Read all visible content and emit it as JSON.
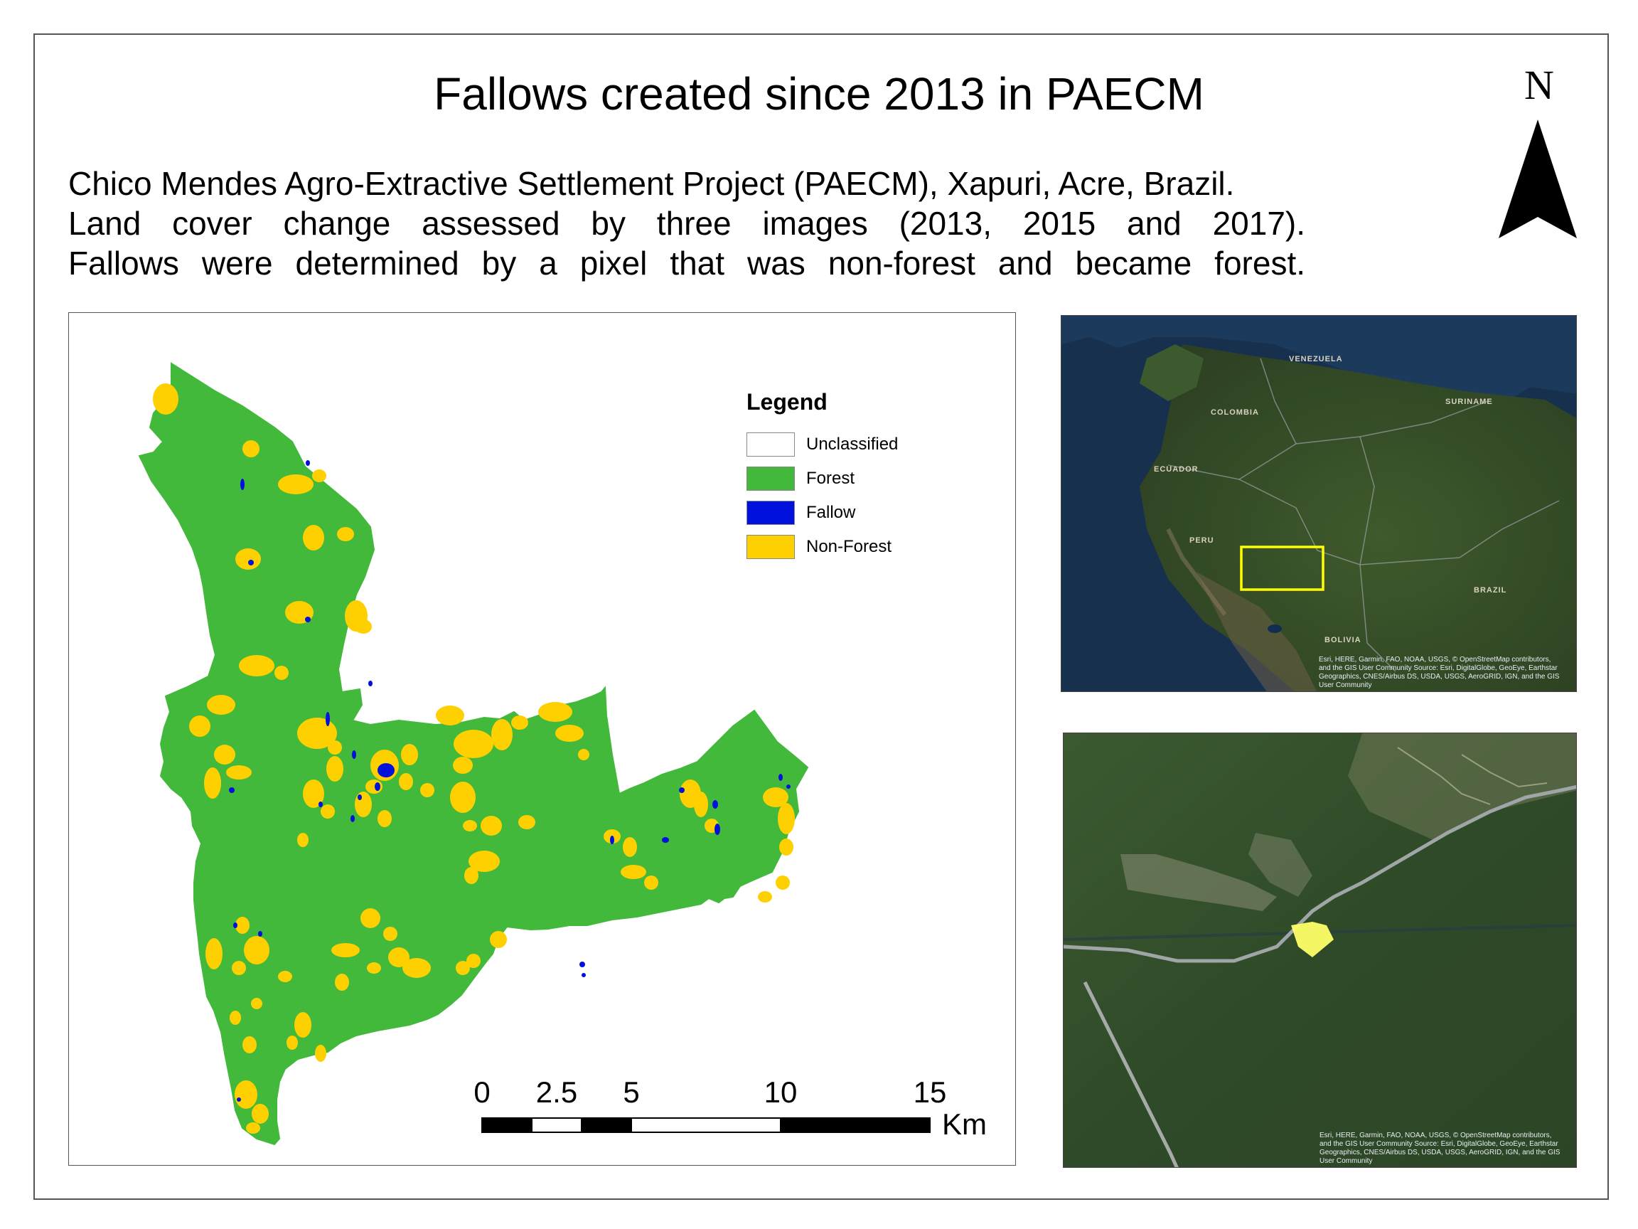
{
  "title": "Fallows created since 2013 in PAECM",
  "description": [
    "Chico Mendes Agro-Extractive Settlement Project (PAECM), Xapuri, Acre, Brazil.",
    "Land cover change assessed by three images (2013,  2015 and 2017).",
    "Fallows were determined by a pixel that was non-forest and became forest."
  ],
  "north_arrow": {
    "letter": "N"
  },
  "legend": {
    "title": "Legend",
    "items": [
      {
        "label": "Unclassified",
        "color": "#ffffff"
      },
      {
        "label": "Forest",
        "color": "#43b93c"
      },
      {
        "label": "Fallow",
        "color": "#0011dd"
      },
      {
        "label": "Non-Forest",
        "color": "#ffd000"
      }
    ]
  },
  "scale_bar": {
    "labels": [
      "0",
      "2.5",
      "5",
      "10",
      "15"
    ],
    "unit": "Km"
  },
  "inset_overview": {
    "countries": [
      "COLOMBIA",
      "ECUADOR",
      "PERU",
      "BRAZIL",
      "BOLIVIA",
      "VENEZUELA",
      "SURINAME"
    ],
    "highlight_color": "#ffff00",
    "credit": "Esri, HERE, Garmin, FAO, NOAA, USGS, © OpenStreetMap contributors, and the GIS User Community  Source: Esri, DigitalGlobe, GeoEye, Earthstar Geographics, CNES/Airbus DS, USDA, USGS, AeroGRID, IGN, and the GIS User Community"
  },
  "inset_detail": {
    "highlight_color": "#ffff66",
    "credit": "Esri, HERE, Garmin, FAO, NOAA, USGS, © OpenStreetMap contributors, and the GIS User Community  Source: Esri, DigitalGlobe, GeoEye, Earthstar Geographics, CNES/Airbus DS, USDA, USGS, AeroGRID, IGN, and the GIS User Community"
  }
}
